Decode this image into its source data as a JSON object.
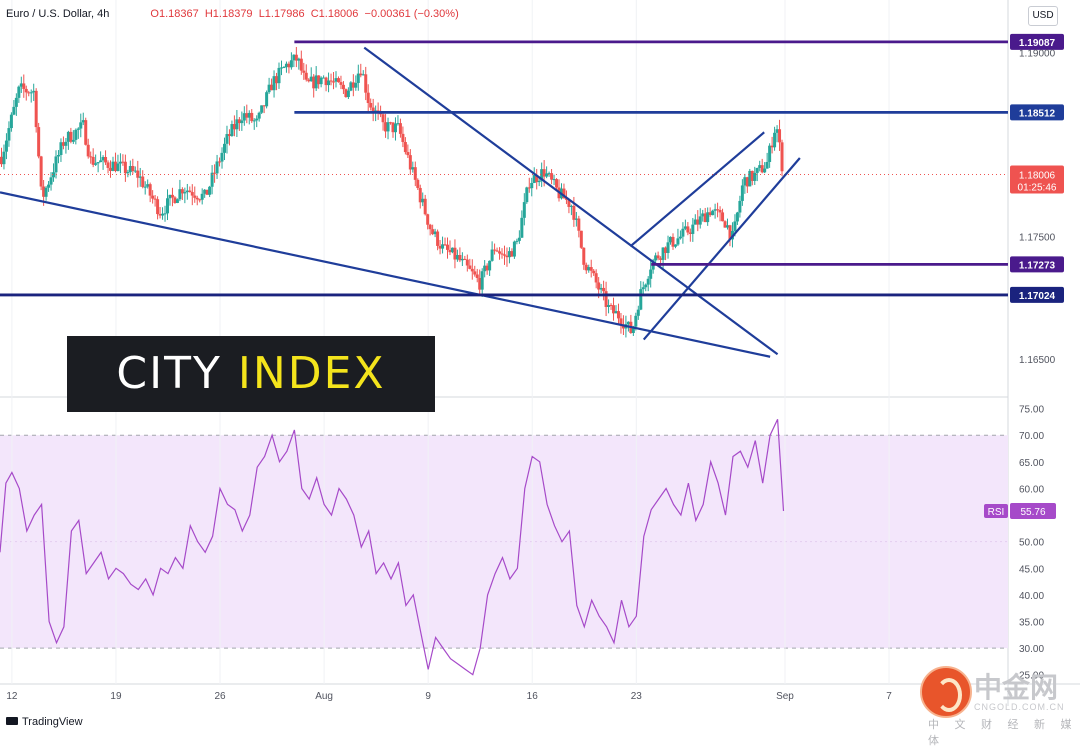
{
  "header": {
    "symbol": "Euro / U.S. Dollar, 4h",
    "open": "O1.18367",
    "high": "H1.18379",
    "low": "L1.17986",
    "close": "C1.18006",
    "change": "−0.00361 (−0.30%)"
  },
  "currency_button": "USD",
  "logo": {
    "part1": "CITY ",
    "part2": "INDEX"
  },
  "footer": {
    "brand": "TradingView"
  },
  "watermark": {
    "name": "中金网",
    "url": "CNGOLD.COM.CN",
    "tagline": "中 文 财 经 新 媒 体"
  },
  "colors": {
    "up": "#26a69a",
    "down": "#ef5350",
    "line_blue": "#1f3d9a",
    "line_purple": "#4a1a8c",
    "rsi": "#a64ac9",
    "rsi_band": "#f3e6fb",
    "price_label": "#ef5350"
  },
  "chart_data": [
    {
      "type": "candlestick",
      "title": "Euro / U.S. Dollar, 4h",
      "y_ticks": [
        "1.19000",
        "1.17500",
        "1.16500"
      ],
      "ylim": [
        1.162,
        1.192
      ],
      "x_ticks": [
        "12",
        "19",
        "26",
        "Aug",
        "9",
        "16",
        "23",
        "Sep",
        "7"
      ],
      "x_tick_days": [
        12,
        19,
        26,
        33,
        40,
        47,
        54,
        64,
        71
      ],
      "xlim_days": [
        11.2,
        79
      ],
      "last_price": "1.18006",
      "countdown": "01:25:46",
      "horizontal_levels": [
        {
          "label": "1.19087",
          "value": 1.19087,
          "start_day": 31.0,
          "color": "purple"
        },
        {
          "label": "1.18512",
          "value": 1.18512,
          "start_day": 31.0,
          "color": "blue"
        },
        {
          "label": "1.17273",
          "value": 1.17273,
          "start_day": 55.0,
          "color": "purple"
        },
        {
          "label": "1.17024",
          "value": 1.17024,
          "start_day": 11.2,
          "color": "navy"
        }
      ],
      "trendlines": [
        {
          "from": [
            11.2,
            1.1786
          ],
          "to": [
            63.0,
            1.1652
          ]
        },
        {
          "from": [
            35.7,
            1.1904
          ],
          "to": [
            63.5,
            1.1654
          ]
        },
        {
          "from": [
            53.6,
            1.1742
          ],
          "to": [
            62.6,
            1.1835
          ]
        },
        {
          "from": [
            54.5,
            1.1666
          ],
          "to": [
            65.0,
            1.1814
          ]
        }
      ],
      "series": [
        {
          "name": "EUR/USD",
          "path_points_days": [
            11.3,
            12.5,
            13.5,
            14.0,
            15.5,
            16.8,
            17.3,
            19.0,
            20.5,
            22.0,
            23.5,
            25.0,
            26.5,
            27.5,
            28.5,
            29.5,
            30.5,
            31.2,
            31.8,
            33.0,
            34.5,
            35.5,
            36.0,
            37.0,
            38.0,
            39.0,
            40.2,
            41.0,
            42.0,
            43.5,
            44.5,
            45.2,
            46.0,
            46.8,
            47.8,
            48.8,
            49.7,
            50.5,
            51.3,
            52.2,
            52.9,
            53.3,
            53.7,
            54.2,
            55.0,
            56.0,
            57.0,
            58.0,
            59.0,
            60.0,
            60.5,
            61.2,
            62.0,
            62.8,
            63.4,
            63.9
          ],
          "path_points_price": [
            1.1815,
            1.187,
            1.1868,
            1.178,
            1.1828,
            1.184,
            1.1812,
            1.1808,
            1.18,
            1.177,
            1.179,
            1.1782,
            1.183,
            1.185,
            1.1842,
            1.1875,
            1.189,
            1.1895,
            1.1873,
            1.188,
            1.1868,
            1.1888,
            1.186,
            1.184,
            1.1838,
            1.18,
            1.1755,
            1.174,
            1.1732,
            1.1712,
            1.1742,
            1.1732,
            1.1745,
            1.1795,
            1.1803,
            1.1785,
            1.1775,
            1.173,
            1.1712,
            1.169,
            1.1685,
            1.1678,
            1.1672,
            1.17,
            1.1728,
            1.1742,
            1.175,
            1.176,
            1.1772,
            1.1762,
            1.1748,
            1.1795,
            1.18,
            1.181,
            1.1843,
            1.18
          ]
        }
      ]
    },
    {
      "type": "line",
      "title": "RSI",
      "series_label": "RSI",
      "last_value": "55.76",
      "y_ticks": [
        "75.00",
        "70.00",
        "65.00",
        "60.00",
        "55.00",
        "50.00",
        "45.00",
        "40.00",
        "35.00",
        "30.00",
        "25.00"
      ],
      "ylim": [
        24,
        77
      ],
      "band": [
        30,
        70
      ],
      "x_days": [
        11.2,
        11.6,
        12.0,
        12.5,
        13.0,
        13.5,
        14.0,
        14.5,
        15.0,
        15.5,
        16.0,
        16.5,
        17.0,
        17.5,
        18.0,
        18.5,
        19.0,
        19.5,
        20.0,
        20.5,
        21.0,
        21.5,
        22.0,
        22.5,
        23.0,
        23.5,
        24.0,
        24.5,
        25.0,
        25.5,
        26.0,
        26.5,
        27.0,
        27.5,
        28.0,
        28.5,
        29.0,
        29.5,
        30.0,
        30.5,
        31.0,
        31.5,
        32.0,
        32.5,
        33.0,
        33.5,
        34.0,
        34.5,
        35.0,
        35.5,
        36.0,
        36.5,
        37.0,
        37.5,
        38.0,
        38.5,
        39.0,
        39.5,
        40.0,
        40.5,
        41.0,
        41.5,
        42.0,
        42.5,
        43.0,
        43.5,
        44.0,
        44.5,
        45.0,
        45.5,
        46.0,
        46.5,
        47.0,
        47.5,
        48.0,
        48.5,
        49.0,
        49.5,
        50.0,
        50.5,
        51.0,
        51.5,
        52.0,
        52.5,
        53.0,
        53.5,
        54.0,
        54.5,
        55.0,
        55.5,
        56.0,
        56.5,
        57.0,
        57.5,
        58.0,
        58.5,
        59.0,
        59.5,
        60.0,
        60.5,
        61.0,
        61.5,
        62.0,
        62.5,
        63.0,
        63.5,
        63.9
      ],
      "values": [
        48,
        61,
        63,
        60,
        52,
        55,
        57,
        35,
        31,
        34,
        52,
        54,
        44,
        46,
        48,
        43,
        45,
        44,
        42,
        41,
        43,
        40,
        45,
        44,
        47,
        45,
        53,
        50,
        48,
        51,
        60,
        57,
        56,
        52,
        55,
        64,
        66,
        70,
        65,
        67,
        71,
        60,
        58,
        62,
        57,
        55,
        60,
        58,
        55,
        49,
        52,
        44,
        46,
        43,
        46,
        38,
        40,
        33,
        26,
        32,
        30,
        28,
        27,
        26,
        25,
        30,
        40,
        44,
        47,
        43,
        45,
        60,
        66,
        65,
        57,
        53,
        50,
        52,
        38,
        34,
        39,
        36,
        34,
        31,
        39,
        34,
        36,
        51,
        56,
        58,
        60,
        57,
        55,
        61,
        54,
        57,
        65,
        61,
        55,
        66,
        67,
        64,
        69,
        61,
        70,
        73,
        55.76
      ]
    }
  ]
}
